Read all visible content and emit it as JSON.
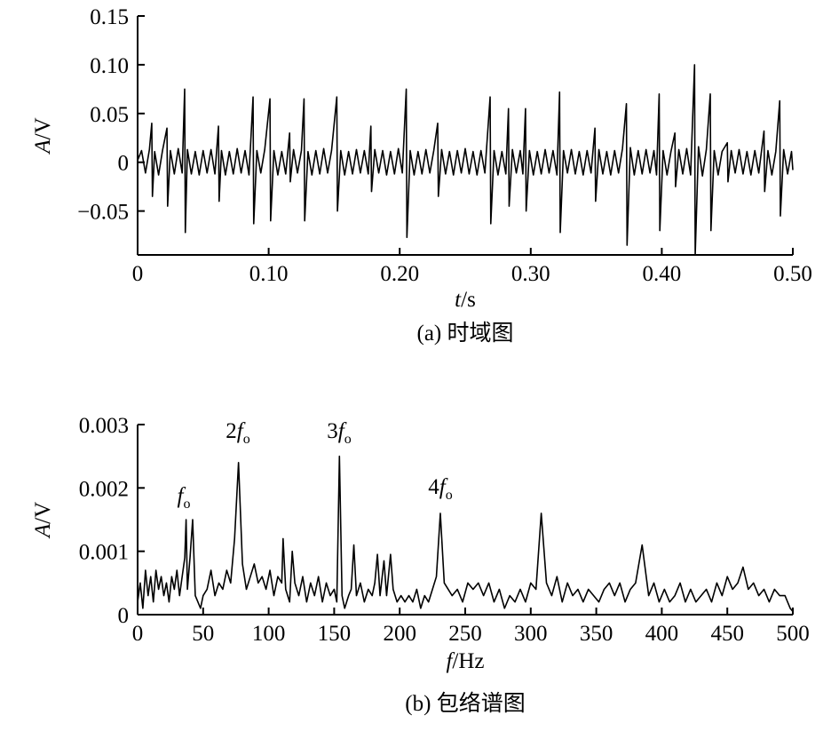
{
  "chart_data": [
    {
      "type": "line",
      "y_label": {
        "symbol": "A",
        "unit": "/V"
      },
      "x_label": {
        "symbol": "t",
        "unit": "/s"
      },
      "caption": "(a) 时域图",
      "xlim": [
        0,
        0.5
      ],
      "ylim": [
        -0.095,
        0.15
      ],
      "xticks": [
        0,
        {
          "value": 0.1,
          "label": "0.10"
        },
        {
          "value": 0.2,
          "label": "0.20"
        },
        {
          "value": 0.3,
          "label": "0.30"
        },
        {
          "value": 0.4,
          "label": "0.40"
        },
        {
          "value": 0.5,
          "label": "0.50"
        }
      ],
      "yticks": [
        {
          "value": -0.05,
          "label": "−0.05"
        },
        0,
        0.05,
        {
          "value": 0.1,
          "label": "0.10"
        },
        0.15
      ],
      "x": [
        0,
        0.003,
        0.006,
        0.009,
        0.0108,
        0.0113,
        0.013,
        0.016,
        0.019,
        0.0224,
        0.0229,
        0.025,
        0.028,
        0.031,
        0.034,
        0.0359,
        0.0364,
        0.038,
        0.041,
        0.044,
        0.047,
        0.05,
        0.053,
        0.056,
        0.059,
        0.0617,
        0.0622,
        0.064,
        0.067,
        0.07,
        0.073,
        0.076,
        0.079,
        0.082,
        0.085,
        0.0881,
        0.0886,
        0.091,
        0.094,
        0.097,
        0.101,
        0.1015,
        0.104,
        0.107,
        0.11,
        0.113,
        0.116,
        0.1165,
        0.119,
        0.122,
        0.125,
        0.127,
        0.1275,
        0.13,
        0.133,
        0.136,
        0.139,
        0.142,
        0.145,
        0.148,
        0.152,
        0.1525,
        0.155,
        0.158,
        0.161,
        0.164,
        0.167,
        0.17,
        0.173,
        0.176,
        0.178,
        0.1785,
        0.181,
        0.184,
        0.187,
        0.19,
        0.193,
        0.196,
        0.199,
        0.202,
        0.205,
        0.2055,
        0.208,
        0.211,
        0.214,
        0.217,
        0.22,
        0.223,
        0.226,
        0.229,
        0.2295,
        0.232,
        0.235,
        0.238,
        0.241,
        0.244,
        0.247,
        0.25,
        0.253,
        0.256,
        0.259,
        0.262,
        0.265,
        0.269,
        0.2695,
        0.272,
        0.275,
        0.278,
        0.281,
        0.283,
        0.2835,
        0.286,
        0.289,
        0.292,
        0.294,
        0.296,
        0.2965,
        0.299,
        0.302,
        0.305,
        0.308,
        0.311,
        0.314,
        0.317,
        0.32,
        0.322,
        0.3225,
        0.325,
        0.328,
        0.331,
        0.334,
        0.337,
        0.34,
        0.343,
        0.346,
        0.349,
        0.3495,
        0.352,
        0.355,
        0.358,
        0.361,
        0.364,
        0.367,
        0.37,
        0.373,
        0.3735,
        0.376,
        0.379,
        0.382,
        0.385,
        0.388,
        0.391,
        0.394,
        0.396,
        0.398,
        0.3985,
        0.401,
        0.404,
        0.407,
        0.41,
        0.4105,
        0.413,
        0.416,
        0.419,
        0.422,
        0.425,
        0.4255,
        0.428,
        0.431,
        0.434,
        0.437,
        0.4375,
        0.44,
        0.443,
        0.446,
        0.45,
        0.4505,
        0.453,
        0.456,
        0.459,
        0.462,
        0.465,
        0.468,
        0.471,
        0.474,
        0.478,
        0.4785,
        0.481,
        0.484,
        0.487,
        0.49,
        0.4905,
        0.493,
        0.496,
        0.499,
        0.5
      ],
      "series": [
        {
          "color": "#000000",
          "values": [
            0.002,
            0.012,
            -0.011,
            0.013,
            0.04,
            -0.035,
            0.011,
            -0.013,
            0.012,
            0.035,
            -0.045,
            0.012,
            -0.012,
            0.014,
            -0.011,
            0.075,
            -0.072,
            0.013,
            -0.012,
            0.011,
            -0.013,
            0.012,
            -0.011,
            0.013,
            -0.012,
            0.037,
            -0.04,
            0.012,
            -0.013,
            0.011,
            -0.012,
            0.014,
            -0.011,
            0.012,
            -0.013,
            0.067,
            -0.063,
            0.012,
            -0.011,
            0.013,
            0.065,
            -0.06,
            0.012,
            -0.013,
            0.011,
            -0.012,
            0.03,
            -0.02,
            0.013,
            -0.011,
            0.012,
            0.065,
            -0.06,
            0.011,
            -0.013,
            0.012,
            -0.012,
            0.014,
            -0.011,
            0.012,
            0.067,
            -0.05,
            0.012,
            -0.013,
            0.011,
            -0.012,
            0.013,
            -0.011,
            0.012,
            -0.012,
            0.037,
            -0.03,
            0.013,
            -0.011,
            0.012,
            -0.013,
            0.011,
            -0.012,
            0.014,
            -0.011,
            0.075,
            -0.077,
            0.012,
            -0.013,
            0.011,
            -0.012,
            0.013,
            -0.011,
            0.012,
            0.04,
            -0.035,
            0.013,
            -0.012,
            0.011,
            -0.013,
            0.012,
            -0.011,
            0.014,
            -0.012,
            0.011,
            -0.013,
            0.012,
            -0.011,
            0.067,
            -0.063,
            0.012,
            -0.013,
            0.011,
            -0.012,
            0.055,
            -0.045,
            0.013,
            -0.011,
            0.012,
            -0.012,
            0.055,
            -0.05,
            0.012,
            -0.013,
            0.011,
            -0.012,
            0.013,
            -0.011,
            0.012,
            -0.013,
            0.072,
            -0.072,
            0.012,
            -0.011,
            0.013,
            -0.012,
            0.011,
            -0.013,
            0.012,
            -0.011,
            0.035,
            -0.04,
            0.013,
            -0.012,
            0.011,
            -0.013,
            0.012,
            -0.011,
            0.014,
            0.06,
            -0.085,
            0.015,
            -0.013,
            0.012,
            -0.012,
            0.013,
            -0.011,
            0.012,
            -0.013,
            0.07,
            -0.07,
            0.012,
            -0.013,
            0.011,
            0.03,
            -0.025,
            0.013,
            -0.012,
            0.014,
            -0.013,
            0.1,
            -0.095,
            0.016,
            -0.014,
            0.013,
            0.07,
            -0.07,
            0.012,
            -0.013,
            0.011,
            0.02,
            -0.02,
            0.012,
            -0.011,
            0.013,
            -0.012,
            0.011,
            -0.013,
            0.012,
            -0.011,
            0.032,
            -0.03,
            0.012,
            -0.013,
            0.011,
            0.063,
            -0.055,
            0.013,
            -0.012,
            0.011,
            -0.008
          ]
        }
      ]
    },
    {
      "type": "line",
      "y_label": {
        "symbol": "A",
        "unit": "/V"
      },
      "x_label": {
        "symbol": "f",
        "unit": "/Hz"
      },
      "caption": "(b) 包络谱图",
      "annotations": [
        {
          "symbol": "f",
          "subscript": "o"
        },
        {
          "prefix": "2",
          "symbol": "f",
          "subscript": "o"
        },
        {
          "prefix": "3",
          "symbol": "f",
          "subscript": "o"
        },
        {
          "prefix": "4",
          "symbol": "f",
          "subscript": "o"
        }
      ],
      "xlim": [
        0,
        500
      ],
      "ylim": [
        0,
        0.003
      ],
      "xticks": [
        0,
        50,
        100,
        150,
        200,
        250,
        300,
        350,
        400,
        450,
        500
      ],
      "yticks": [
        0,
        0.001,
        0.002,
        0.003
      ],
      "x": [
        0,
        2,
        4,
        6,
        8,
        10,
        12,
        14,
        16,
        18,
        20,
        22,
        24,
        26,
        28,
        30,
        32,
        34,
        36,
        37,
        38,
        40,
        42,
        44,
        46,
        48,
        50,
        53,
        56,
        59,
        62,
        65,
        68,
        71,
        74,
        77,
        80,
        83,
        86,
        89,
        92,
        95,
        98,
        101,
        104,
        107,
        110,
        111,
        113,
        116,
        118,
        120,
        123,
        126,
        129,
        132,
        135,
        138,
        141,
        144,
        147,
        150,
        152,
        154,
        156,
        158,
        161,
        163,
        165,
        167,
        170,
        173,
        176,
        179,
        181,
        183,
        185,
        188,
        190,
        193,
        195,
        198,
        201,
        204,
        207,
        210,
        213,
        216,
        219,
        222,
        225,
        228,
        231,
        234,
        237,
        240,
        244,
        248,
        252,
        256,
        260,
        264,
        268,
        272,
        276,
        280,
        284,
        288,
        292,
        296,
        300,
        304,
        308,
        312,
        316,
        320,
        324,
        328,
        332,
        336,
        340,
        344,
        348,
        352,
        356,
        360,
        364,
        368,
        372,
        376,
        380,
        385,
        390,
        394,
        398,
        402,
        406,
        410,
        414,
        418,
        422,
        426,
        430,
        434,
        438,
        442,
        446,
        450,
        454,
        458,
        462,
        466,
        470,
        474,
        478,
        482,
        486,
        490,
        494,
        498,
        500
      ],
      "series": [
        {
          "color": "#000000",
          "values": [
            0.0002,
            0.0005,
            0.0001,
            0.0007,
            0.0003,
            0.0006,
            0.0002,
            0.0007,
            0.0004,
            0.0006,
            0.0003,
            0.0005,
            0.0002,
            0.0006,
            0.0004,
            0.0007,
            0.0003,
            0.0006,
            0.0009,
            0.0015,
            0.0004,
            0.0009,
            0.0015,
            0.0003,
            0.0002,
            0.0001,
            0.0003,
            0.0004,
            0.0007,
            0.0003,
            0.0005,
            0.0004,
            0.0007,
            0.0005,
            0.0012,
            0.0024,
            0.0008,
            0.0004,
            0.0006,
            0.0008,
            0.0005,
            0.0006,
            0.0004,
            0.0007,
            0.0003,
            0.0006,
            0.0005,
            0.0012,
            0.0004,
            0.0002,
            0.001,
            0.0005,
            0.0003,
            0.0006,
            0.0002,
            0.0005,
            0.0003,
            0.0006,
            0.0002,
            0.0005,
            0.0003,
            0.0004,
            0.0002,
            0.0025,
            0.0003,
            0.0001,
            0.0003,
            0.0004,
            0.0011,
            0.0003,
            0.0005,
            0.0002,
            0.0004,
            0.0003,
            0.0005,
            0.00095,
            0.0003,
            0.00085,
            0.0003,
            0.00095,
            0.0004,
            0.0002,
            0.0003,
            0.0002,
            0.0003,
            0.0002,
            0.0004,
            0.0001,
            0.0003,
            0.0002,
            0.0004,
            0.0006,
            0.0016,
            0.0005,
            0.0004,
            0.0003,
            0.0004,
            0.0002,
            0.0005,
            0.0004,
            0.0005,
            0.0003,
            0.0005,
            0.0002,
            0.0004,
            0.0001,
            0.0003,
            0.0002,
            0.0004,
            0.0002,
            0.0005,
            0.0004,
            0.0016,
            0.0005,
            0.0003,
            0.0006,
            0.0002,
            0.0005,
            0.0003,
            0.0004,
            0.0002,
            0.0004,
            0.0003,
            0.0002,
            0.0004,
            0.0005,
            0.0003,
            0.0005,
            0.0002,
            0.0004,
            0.0005,
            0.0011,
            0.0003,
            0.0005,
            0.0002,
            0.0004,
            0.0002,
            0.0003,
            0.0005,
            0.0002,
            0.0004,
            0.0002,
            0.0003,
            0.0004,
            0.0002,
            0.0005,
            0.0003,
            0.0006,
            0.0004,
            0.0005,
            0.00075,
            0.0004,
            0.0005,
            0.0003,
            0.0004,
            0.0002,
            0.0004,
            0.0003,
            0.0003,
            0.0001,
            5e-05
          ]
        }
      ]
    }
  ]
}
